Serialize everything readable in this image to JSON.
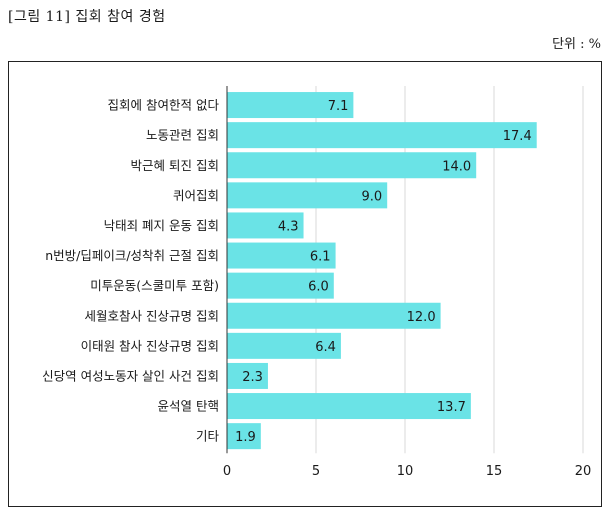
{
  "figure": {
    "title": "[그림 11] 집회 참여 경험",
    "unit": "단위 : %"
  },
  "colors": {
    "bar": "#6ae3e6",
    "grid": "#d8d8d8",
    "axis": "#333333"
  },
  "chart_data": {
    "type": "bar",
    "orientation": "horizontal",
    "categories": [
      "집회에 참여한적 없다",
      "노동관련 집회",
      "박근혜 퇴진 집회",
      "퀴어집회",
      "낙태죄 폐지 운동 집회",
      "n번방/딥페이크/성착취 근절 집회",
      "미투운동(스쿨미투 포함)",
      "세월호참사 진상규명 집회",
      "이태원 참사 진상규명 집회",
      "신당역 여성노동자 살인 사건 집회",
      "윤석열 탄핵",
      "기타"
    ],
    "values": [
      7.1,
      17.4,
      14.0,
      9.0,
      4.3,
      6.1,
      6.0,
      12.0,
      6.4,
      2.3,
      13.7,
      1.9
    ],
    "value_labels": [
      "7.1",
      "17.4",
      "14.0",
      "9.0",
      "4.3",
      "6.1",
      "6.0",
      "12.0",
      "6.4",
      "2.3",
      "13.7",
      "1.9"
    ],
    "xlim": [
      0,
      20
    ],
    "xticks": [
      "0",
      "5",
      "10",
      "15",
      "20"
    ],
    "grid": "vertical",
    "title": "",
    "xlabel": "",
    "ylabel": ""
  }
}
